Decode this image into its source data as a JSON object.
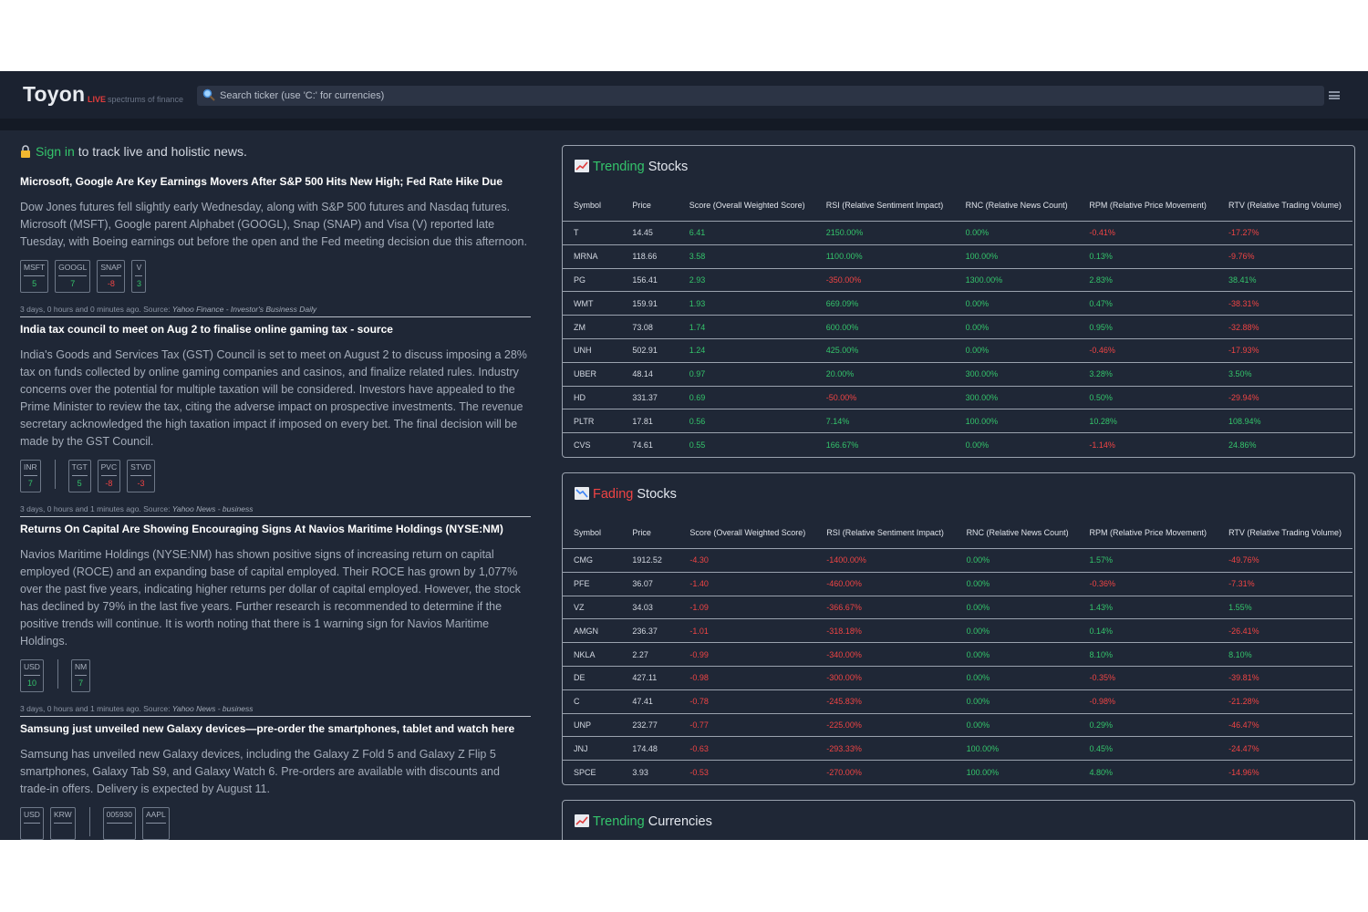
{
  "header": {
    "logo": "Toyon",
    "live": "LIVE",
    "tagline": "spectrums of finance",
    "search_placeholder": "Search ticker (use 'C:' for currencies)"
  },
  "signin": {
    "link": "Sign in",
    "text": " to track live and holistic news."
  },
  "news": [
    {
      "title": "Microsoft, Google Are Key Earnings Movers After S&P 500 Hits New High; Fed Rate Hike Due",
      "summary": "Dow Jones futures fell slightly early Wednesday, along with S&P 500 futures and Nasdaq futures. Microsoft (MSFT), Google parent Alphabet (GOOGL), Snap (SNAP) and Visa (V) reported late Tuesday, with Boeing earnings out before the open and the Fed meeting decision due this afternoon.",
      "tag_groups": [
        [
          {
            "sym": "MSFT",
            "score": "5"
          },
          {
            "sym": "GOOGL",
            "score": "7"
          },
          {
            "sym": "SNAP",
            "score": "-8"
          },
          {
            "sym": "V",
            "score": "3"
          }
        ]
      ],
      "time": "3 days, 0 hours and 0 minutes ago. Source: ",
      "source": "Yahoo Finance - Investor's Business Daily"
    },
    {
      "title": "India tax council to meet on Aug 2 to finalise online gaming tax - source",
      "summary": "India's Goods and Services Tax (GST) Council is set to meet on August 2 to discuss imposing a 28% tax on funds collected by online gaming companies and casinos, and finalize related rules. Industry concerns over the potential for multiple taxation will be considered. Investors have appealed to the Prime Minister to review the tax, citing the adverse impact on prospective investments. The revenue secretary acknowledged the high taxation impact if imposed on every bet. The final decision will be made by the GST Council.",
      "tag_groups": [
        [
          {
            "sym": "INR",
            "score": "7"
          }
        ],
        [
          {
            "sym": "TGT",
            "score": "5"
          },
          {
            "sym": "PVC",
            "score": "-8"
          },
          {
            "sym": "STVD",
            "score": "-3"
          }
        ]
      ],
      "time": "3 days, 0 hours and 1 minutes ago. Source: ",
      "source": "Yahoo News - business"
    },
    {
      "title": "Returns On Capital Are Showing Encouraging Signs At Navios Maritime Holdings (NYSE:NM)",
      "summary": "Navios Maritime Holdings (NYSE:NM) has shown positive signs of increasing return on capital employed (ROCE) and an expanding base of capital employed. Their ROCE has grown by 1,077% over the past five years, indicating higher returns per dollar of capital employed. However, the stock has declined by 79% in the last five years. Further research is recommended to determine if the positive trends will continue. It is worth noting that there is 1 warning sign for Navios Maritime Holdings.",
      "tag_groups": [
        [
          {
            "sym": "USD",
            "score": "10"
          }
        ],
        [
          {
            "sym": "NM",
            "score": "7"
          }
        ]
      ],
      "time": "3 days, 0 hours and 1 minutes ago. Source: ",
      "source": "Yahoo News - business"
    },
    {
      "title": "Samsung just unveiled new Galaxy devices—pre-order the smartphones, tablet and watch here",
      "summary": "Samsung has unveiled new Galaxy devices, including the Galaxy Z Fold 5 and Galaxy Z Flip 5 smartphones, Galaxy Tab S9, and Galaxy Watch 6. Pre-orders are available with discounts and trade-in offers. Delivery is expected by August 11.",
      "tag_groups": [
        [
          {
            "sym": "USD",
            "score": ""
          },
          {
            "sym": "KRW",
            "score": ""
          }
        ],
        [
          {
            "sym": "005930",
            "score": ""
          },
          {
            "sym": "AAPL",
            "score": ""
          }
        ]
      ],
      "time": "",
      "source": ""
    }
  ],
  "columns": [
    "Symbol",
    "Price",
    "Score (Overall Weighted Score)",
    "RSI (Relative Sentiment Impact)",
    "RNC (Relative News Count)",
    "RPM (Relative Price Movement)",
    "RTV (Relative Trading Volume)"
  ],
  "trending": {
    "title_highlight": "Trending",
    "title_rest": " Stocks",
    "rows": [
      [
        "T",
        "14.45",
        "6.41",
        "2150.00%",
        "0.00%",
        "-0.41%",
        "-17.27%"
      ],
      [
        "MRNA",
        "118.66",
        "3.58",
        "1100.00%",
        "100.00%",
        "0.13%",
        "-9.76%"
      ],
      [
        "PG",
        "156.41",
        "2.93",
        "-350.00%",
        "1300.00%",
        "2.83%",
        "38.41%"
      ],
      [
        "WMT",
        "159.91",
        "1.93",
        "669.09%",
        "0.00%",
        "0.47%",
        "-38.31%"
      ],
      [
        "ZM",
        "73.08",
        "1.74",
        "600.00%",
        "0.00%",
        "0.95%",
        "-32.88%"
      ],
      [
        "UNH",
        "502.91",
        "1.24",
        "425.00%",
        "0.00%",
        "-0.46%",
        "-17.93%"
      ],
      [
        "UBER",
        "48.14",
        "0.97",
        "20.00%",
        "300.00%",
        "3.28%",
        "3.50%"
      ],
      [
        "HD",
        "331.37",
        "0.69",
        "-50.00%",
        "300.00%",
        "0.50%",
        "-29.94%"
      ],
      [
        "PLTR",
        "17.81",
        "0.56",
        "7.14%",
        "100.00%",
        "10.28%",
        "108.94%"
      ],
      [
        "CVS",
        "74.61",
        "0.55",
        "166.67%",
        "0.00%",
        "-1.14%",
        "24.86%"
      ]
    ]
  },
  "fading": {
    "title_highlight": "Fading",
    "title_rest": " Stocks",
    "rows": [
      [
        "CMG",
        "1912.52",
        "-4.30",
        "-1400.00%",
        "0.00%",
        "1.57%",
        "-49.76%"
      ],
      [
        "PFE",
        "36.07",
        "-1.40",
        "-460.00%",
        "0.00%",
        "-0.36%",
        "-7.31%"
      ],
      [
        "VZ",
        "34.03",
        "-1.09",
        "-366.67%",
        "0.00%",
        "1.43%",
        "1.55%"
      ],
      [
        "AMGN",
        "236.37",
        "-1.01",
        "-318.18%",
        "0.00%",
        "0.14%",
        "-26.41%"
      ],
      [
        "NKLA",
        "2.27",
        "-0.99",
        "-340.00%",
        "0.00%",
        "8.10%",
        "8.10%"
      ],
      [
        "DE",
        "427.11",
        "-0.98",
        "-300.00%",
        "0.00%",
        "-0.35%",
        "-39.81%"
      ],
      [
        "C",
        "47.41",
        "-0.78",
        "-245.83%",
        "0.00%",
        "-0.98%",
        "-21.28%"
      ],
      [
        "UNP",
        "232.77",
        "-0.77",
        "-225.00%",
        "0.00%",
        "0.29%",
        "-46.47%"
      ],
      [
        "JNJ",
        "174.48",
        "-0.63",
        "-293.33%",
        "100.00%",
        "0.45%",
        "-24.47%"
      ],
      [
        "SPCE",
        "3.93",
        "-0.53",
        "-270.00%",
        "100.00%",
        "4.80%",
        "-14.96%"
      ]
    ]
  },
  "currencies": {
    "title_highlight": "Trending",
    "title_rest": " Currencies"
  },
  "colors": {
    "positive": "#34c46b",
    "negative": "#ef4444",
    "background": "#1f2736"
  }
}
